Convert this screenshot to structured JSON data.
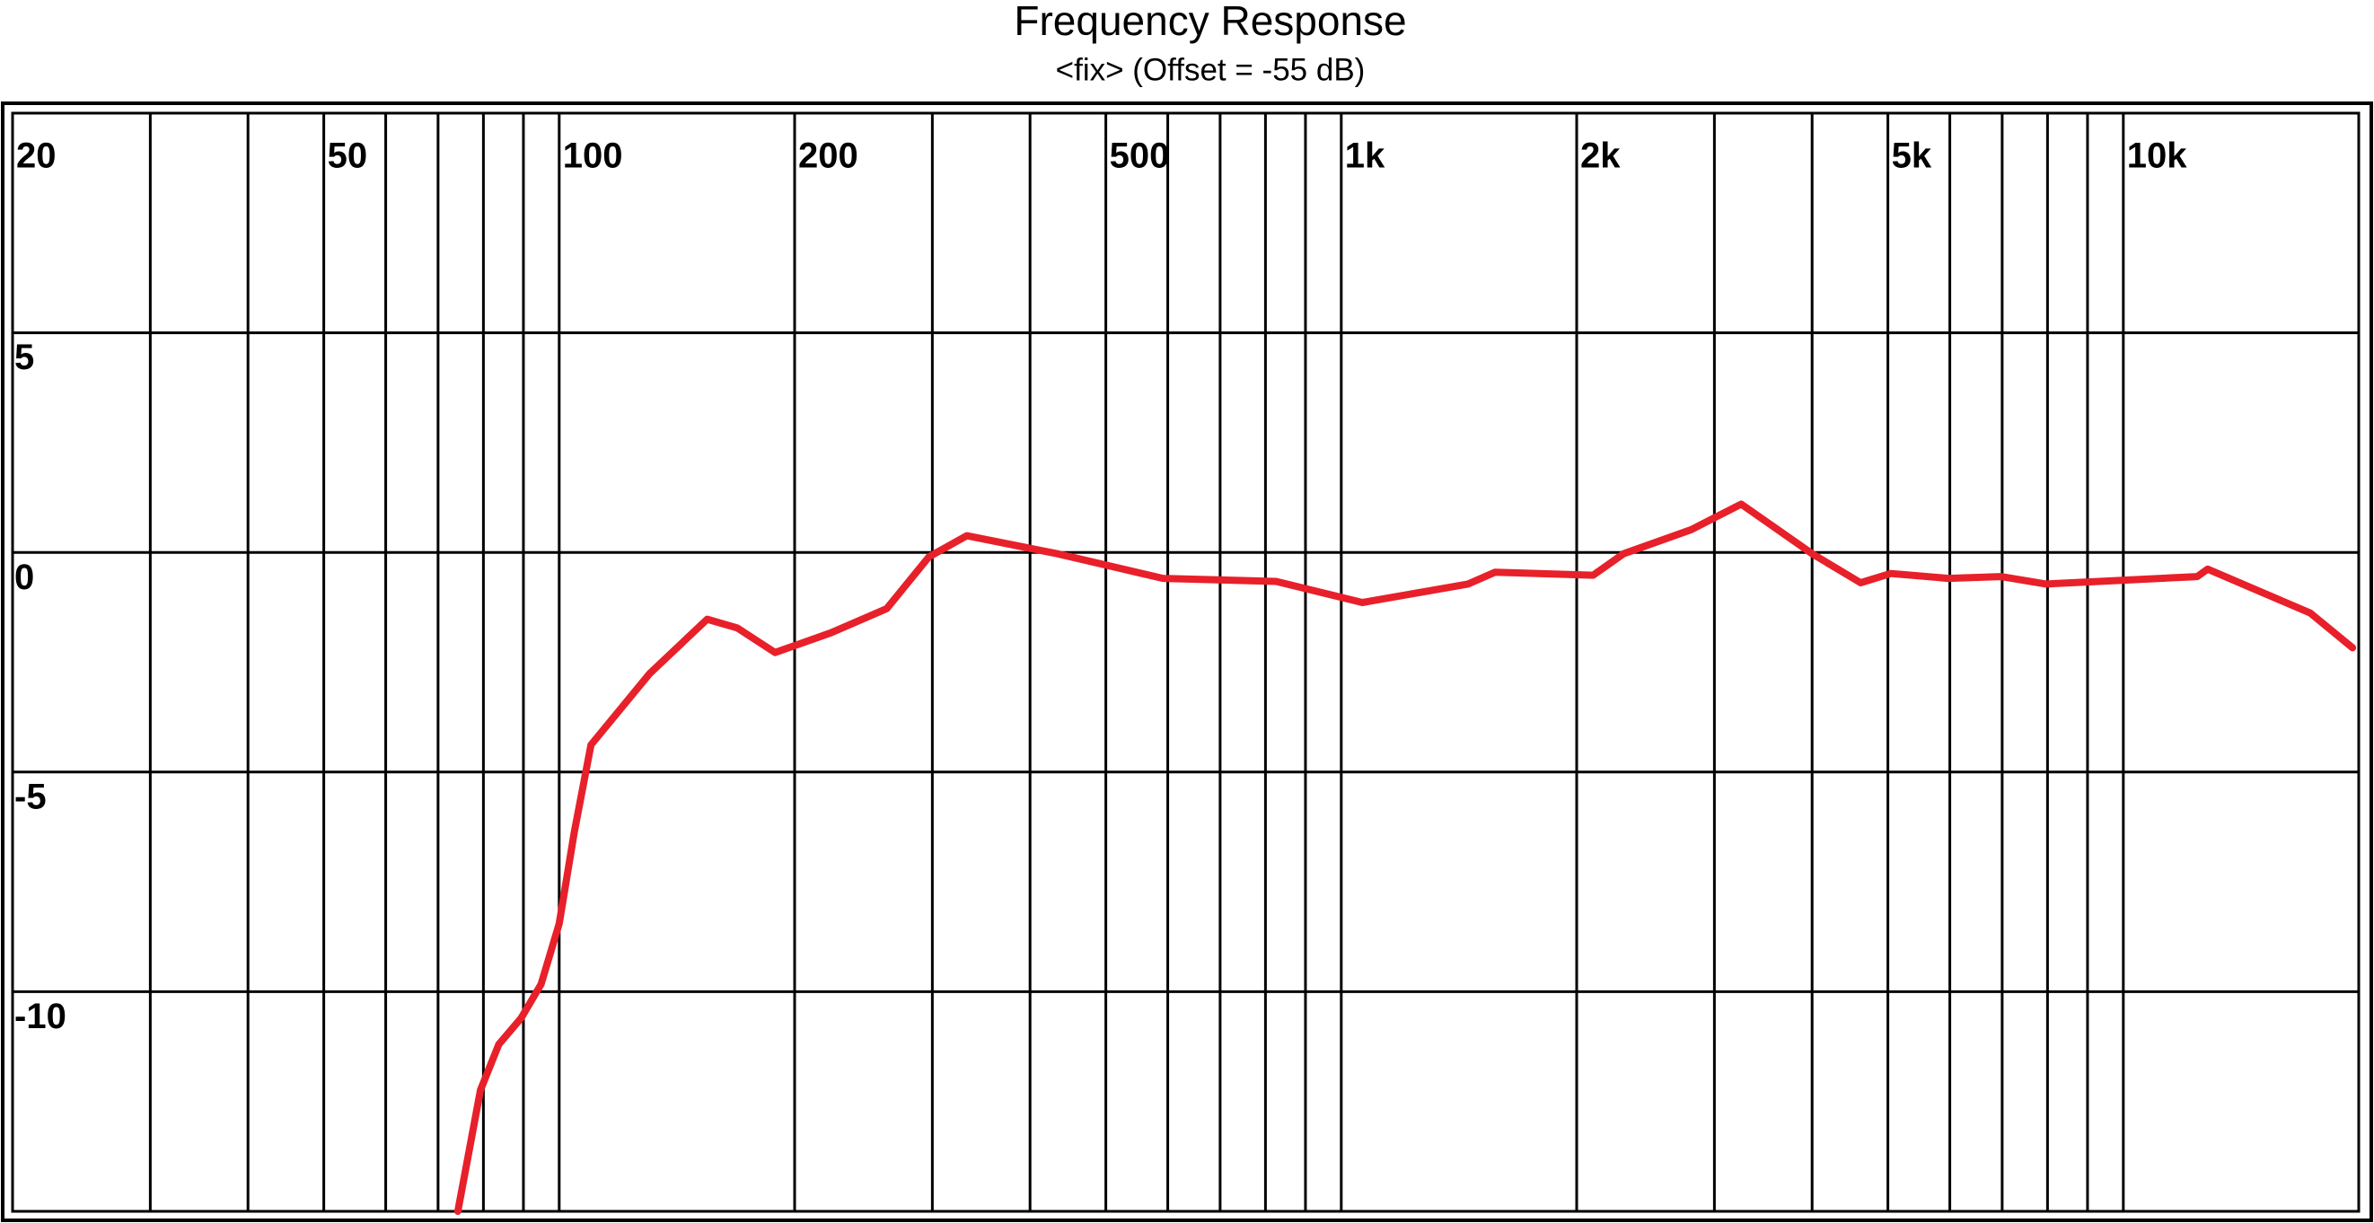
{
  "chart_data": {
    "type": "line",
    "title": "Frequency Response",
    "subtitle": "<fix> (Offset = -55 dB)",
    "x_scale": "log",
    "grid": true,
    "xlim": [
      20,
      20000
    ],
    "xticks": [
      20,
      50,
      100,
      200,
      500,
      {
        "value": 1000,
        "label": "1k"
      },
      {
        "value": 2000,
        "label": "2k"
      },
      {
        "value": 5000,
        "label": "5k"
      },
      {
        "value": 10000,
        "label": "10k"
      }
    ],
    "x_minor_ticks": [
      30,
      40,
      60,
      70,
      80,
      90,
      300,
      400,
      600,
      700,
      800,
      900,
      3000,
      4000,
      6000,
      7000,
      8000,
      9000
    ],
    "ylim": [
      -15,
      10
    ],
    "yticks": [
      -10,
      -5,
      0,
      5
    ],
    "x": [
      74.2,
      79.3,
      83.7,
      89.4,
      94.8,
      100,
      104.5,
      109.8,
      130.5,
      154.6,
      168.9,
      188.8,
      222.6,
      262.3,
      297,
      332,
      433.6,
      591.6,
      825.6,
      1064,
      1452,
      1573,
      2099,
      2296,
      2803,
      3246,
      4001,
      4614,
      5042,
      5970,
      6973,
      7967,
      9311,
      12430,
      12820,
      17340,
      19640
    ],
    "series": [
      {
        "color": "#e8202a",
        "values": [
          -15,
          -12.24,
          -11.2,
          -10.6,
          -9.83,
          -8.45,
          -6.38,
          -4.38,
          -2.76,
          -1.52,
          -1.72,
          -2.28,
          -1.83,
          -1.28,
          -0.1,
          0.38,
          -0.03,
          -0.59,
          -0.66,
          -1.14,
          -0.72,
          -0.45,
          -0.52,
          -0.03,
          0.52,
          1.1,
          -0.03,
          -0.69,
          -0.48,
          -0.59,
          -0.55,
          -0.72,
          -0.66,
          -0.55,
          -0.38,
          -1.38,
          -2.17
        ]
      }
    ]
  }
}
